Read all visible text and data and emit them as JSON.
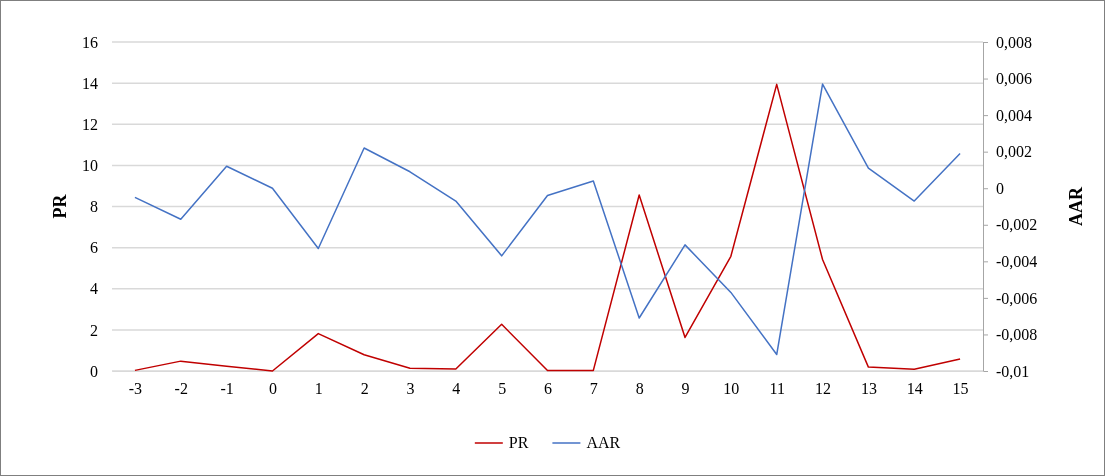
{
  "chart_data": {
    "type": "line",
    "xlabel": null,
    "ylabel": "PR",
    "y2label": "AAR",
    "categories": [
      "-3",
      "-2",
      "-1",
      "0",
      "1",
      "2",
      "3",
      "4",
      "5",
      "6",
      "7",
      "8",
      "9",
      "10",
      "11",
      "12",
      "13",
      "14",
      "15"
    ],
    "series": [
      {
        "name": "PR",
        "color": "#c00000",
        "values": [
          0.03,
          0.48,
          0.23,
          0,
          1.82,
          0.79,
          0.13,
          0.1,
          2.27,
          0.02,
          0.03,
          8.56,
          1.63,
          5.58,
          13.94,
          5.42,
          0.19,
          0.08,
          0.58
        ]
      },
      {
        "name": "AAR",
        "color": "#4472c4",
        "axis": "y2",
        "values": [
          -0.0005,
          -0.0017,
          0.0012,
          0,
          -0.0033,
          0.0022,
          0.0009,
          -0.0007,
          -0.0037,
          -0.0004,
          0.0004,
          -0.0071,
          -0.0031,
          -0.0057,
          -0.0091,
          0.0057,
          0.0011,
          -0.0007,
          0.0019
        ]
      }
    ],
    "ylim": [
      0,
      16
    ],
    "yticks": [
      0,
      2,
      4,
      6,
      8,
      10,
      12,
      14,
      16
    ],
    "y2lim": [
      -0.01,
      0.008
    ],
    "y2ticks": [
      {
        "value": -0.01,
        "label": "-0,01"
      },
      {
        "value": -0.008,
        "label": "-0,008"
      },
      {
        "value": -0.006,
        "label": "-0,006"
      },
      {
        "value": -0.004,
        "label": "-0,004"
      },
      {
        "value": -0.002,
        "label": "-0,002"
      },
      {
        "value": 0,
        "label": "0"
      },
      {
        "value": 0.002,
        "label": "0,002"
      },
      {
        "value": 0.004,
        "label": "0,004"
      },
      {
        "value": 0.006,
        "label": "0,006"
      },
      {
        "value": 0.008,
        "label": "0,008"
      }
    ],
    "grid": "y",
    "legend": "bottom",
    "marker": "none",
    "line_style": "solid"
  }
}
